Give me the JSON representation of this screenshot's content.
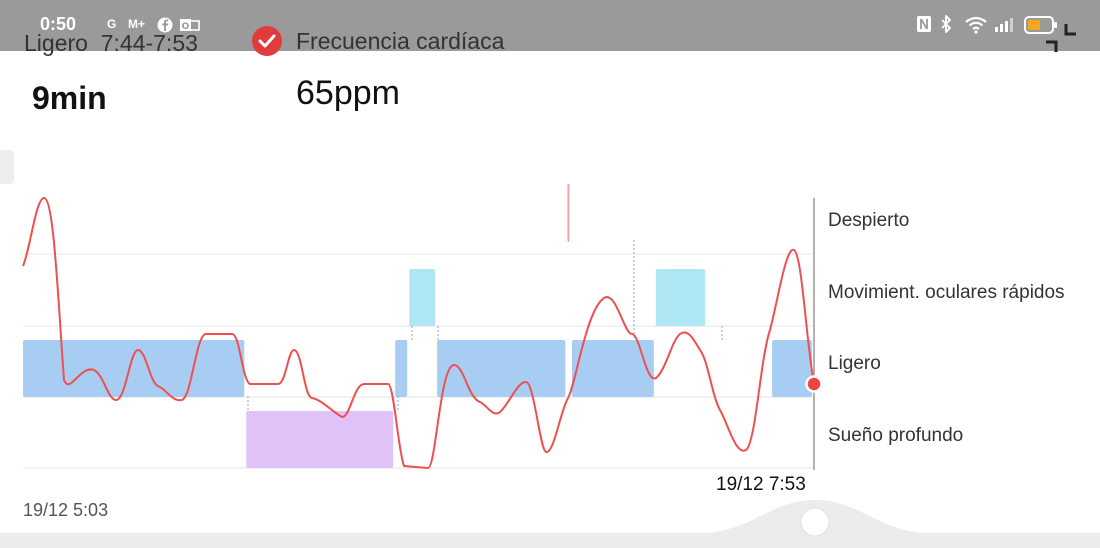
{
  "status_bar": {
    "time": "0:50",
    "notification_icons": [
      "G",
      "M+",
      "facebook-icon",
      "outlook-icon"
    ],
    "system_icons": [
      "nfc-icon",
      "bluetooth-icon",
      "wifi-icon",
      "signal-icon",
      "battery-icon"
    ],
    "battery_level": 0.55,
    "battery_color": "#f5a623"
  },
  "header": {
    "stage_label": "Ligero  7:44-7:53",
    "stage_duration": "9min",
    "heart_rate_label": "Frecuencia cardíaca",
    "heart_rate_value": "65ppm",
    "check_color": "#e03c3c"
  },
  "chart_data": {
    "type": "sleep-hypnogram",
    "levels": [
      "Despierto",
      "Movimient. oculares rápidos",
      "Ligero",
      "Sueño profundo"
    ],
    "x_start_label": "19/12 5:03",
    "x_end_label": "19/12 7:53",
    "colors": {
      "awake": "#f4a3a3",
      "rem": "#aee6f4",
      "light": "#a7cdf3",
      "deep": "#dec2f8",
      "heart_rate": "#ee5050"
    },
    "segments": [
      {
        "stage": "Ligero",
        "start": "5:03",
        "end": "5:51"
      },
      {
        "stage": "Sueño profundo",
        "start": "5:51",
        "end": "6:23"
      },
      {
        "stage": "Ligero",
        "start": "6:23",
        "end": "6:26"
      },
      {
        "stage": "Movimient. oculares rápidos",
        "start": "6:26",
        "end": "6:32"
      },
      {
        "stage": "Ligero",
        "start": "6:32",
        "end": "7:00"
      },
      {
        "stage": "Despierto",
        "start": "7:00",
        "end": "7:01"
      },
      {
        "stage": "Ligero",
        "start": "7:01",
        "end": "7:19"
      },
      {
        "stage": "Movimient. oculares rápidos",
        "start": "7:19",
        "end": "7:30"
      },
      {
        "stage": "Ligero",
        "start": "7:44",
        "end": "7:53"
      }
    ],
    "selected_time": "7:53"
  }
}
